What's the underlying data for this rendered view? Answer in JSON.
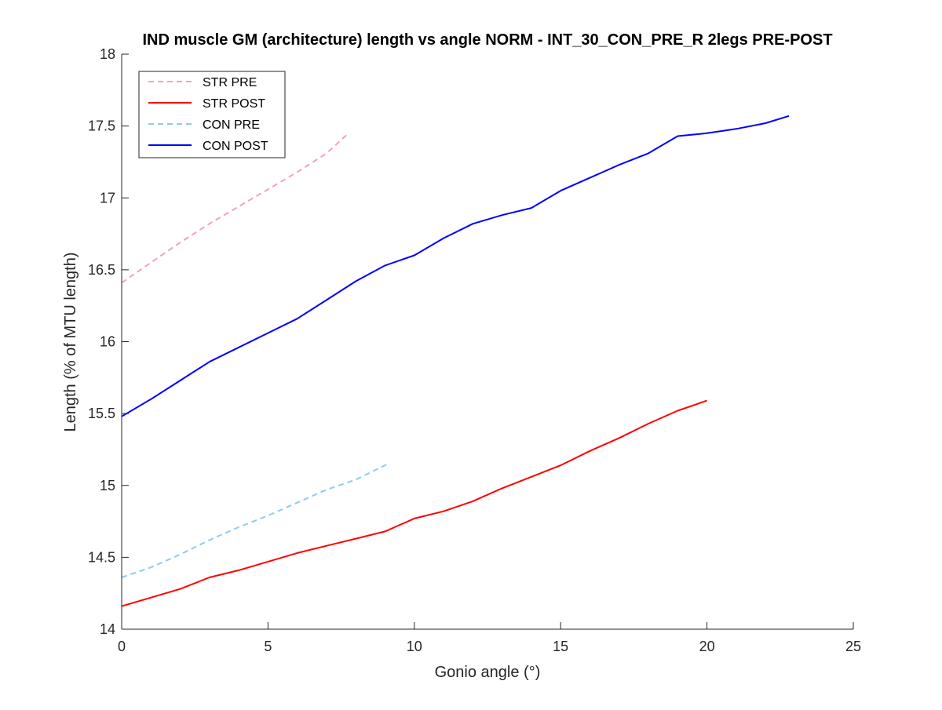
{
  "chart_data": {
    "type": "line",
    "title": "IND muscle GM (architecture) length vs angle NORM - INT_30_CON_PRE_R 2legs PRE-POST",
    "xlabel": "Gonio angle (°)",
    "ylabel": "Length (% of MTU length)",
    "xlim": [
      0,
      25
    ],
    "ylim": [
      14,
      18
    ],
    "xticks": [
      0,
      5,
      10,
      15,
      20,
      25
    ],
    "yticks": [
      14,
      14.5,
      15,
      15.5,
      16,
      16.5,
      17,
      17.5,
      18
    ],
    "grid": false,
    "legend_position": "top-left",
    "series": [
      {
        "name": "STR PRE",
        "color": "#f4a0b8",
        "dashed": true,
        "x": [
          0,
          1,
          2,
          3,
          4,
          5,
          6,
          7,
          7.7
        ],
        "y": [
          16.41,
          16.55,
          16.69,
          16.82,
          16.94,
          17.06,
          17.18,
          17.31,
          17.44
        ]
      },
      {
        "name": "STR POST",
        "color": "#ff0000",
        "dashed": false,
        "x": [
          0,
          1,
          2,
          3,
          4,
          5,
          6,
          7,
          8,
          9,
          10,
          11,
          12,
          13,
          14,
          15,
          16,
          17,
          18,
          19,
          20
        ],
        "y": [
          14.16,
          14.22,
          14.28,
          14.36,
          14.41,
          14.47,
          14.53,
          14.58,
          14.63,
          14.68,
          14.77,
          14.82,
          14.89,
          14.98,
          15.06,
          15.14,
          15.24,
          15.33,
          15.43,
          15.52,
          15.59
        ]
      },
      {
        "name": "CON PRE",
        "color": "#8ecaf0",
        "dashed": true,
        "x": [
          0,
          1,
          2,
          3,
          4,
          5,
          6,
          7,
          8,
          9.1
        ],
        "y": [
          14.36,
          14.43,
          14.52,
          14.62,
          14.71,
          14.79,
          14.88,
          14.97,
          15.04,
          15.15
        ]
      },
      {
        "name": "CON POST",
        "color": "#0000ff",
        "dashed": false,
        "x": [
          0,
          1,
          2,
          3,
          4,
          5,
          6,
          7,
          8,
          9,
          10,
          11,
          12,
          13,
          14,
          15,
          16,
          17,
          18,
          19,
          20,
          21,
          22,
          22.8
        ],
        "y": [
          15.48,
          15.6,
          15.73,
          15.86,
          15.96,
          16.06,
          16.16,
          16.29,
          16.42,
          16.53,
          16.6,
          16.72,
          16.82,
          16.88,
          16.93,
          17.05,
          17.14,
          17.23,
          17.31,
          17.43,
          17.45,
          17.48,
          17.52,
          17.57
        ]
      }
    ]
  }
}
